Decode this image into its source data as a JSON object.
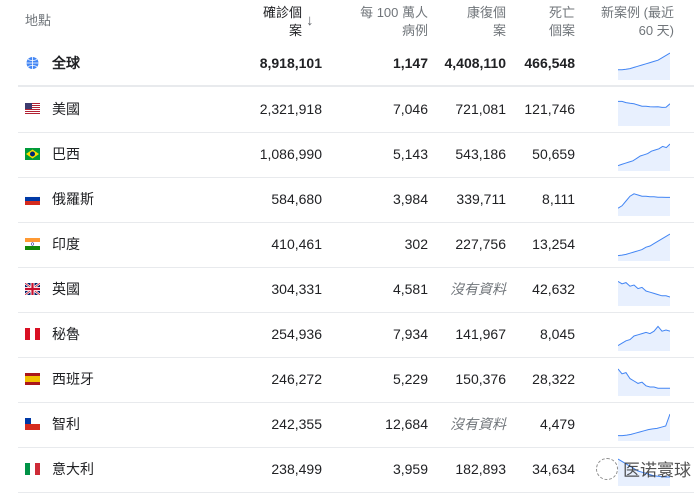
{
  "header": {
    "location": "地點",
    "confirmed": "確診個案",
    "per_million": "每 100 萬人病例",
    "recovered": "康復個案",
    "deaths": "死亡個案",
    "new_cases": "新案例 (最近 60 天)",
    "sort_icon": "arrow-down"
  },
  "accent": "#4285f4",
  "spark_fill": "#e8f0fe",
  "rows": [
    {
      "name": "全球",
      "flag": "globe",
      "confirmed": "8,918,101",
      "per_million": "1,147",
      "recovered": "4,408,110",
      "deaths": "466,548",
      "trend": [
        3,
        3,
        3.2,
        3.5,
        4,
        4.5,
        5,
        5.5,
        6,
        6.5,
        7,
        8,
        9,
        10
      ]
    },
    {
      "name": "美國",
      "flag": "us",
      "confirmed": "2,321,918",
      "per_million": "7,046",
      "recovered": "721,081",
      "deaths": "121,746",
      "trend": [
        9,
        9,
        8.5,
        8.2,
        8,
        7.5,
        7,
        7,
        6.8,
        6.7,
        6.8,
        6.5,
        6.6,
        8
      ]
    },
    {
      "name": "巴西",
      "flag": "br",
      "confirmed": "1,086,990",
      "per_million": "5,143",
      "recovered": "543,186",
      "deaths": "50,659",
      "trend": [
        1,
        1.5,
        2,
        2.5,
        3,
        4,
        5,
        5.5,
        6,
        7,
        7.5,
        8,
        9,
        8.5,
        10
      ]
    },
    {
      "name": "俄羅斯",
      "flag": "ru",
      "confirmed": "584,680",
      "per_million": "3,984",
      "recovered": "339,711",
      "deaths": "8,111",
      "trend": [
        2,
        3,
        5,
        7,
        8,
        7.5,
        7,
        7,
        6.8,
        6.8,
        6.6,
        6.6,
        6.5,
        6.5
      ]
    },
    {
      "name": "印度",
      "flag": "in",
      "confirmed": "410,461",
      "per_million": "302",
      "recovered": "227,756",
      "deaths": "13,254",
      "trend": [
        1,
        1.2,
        1.5,
        2,
        2.5,
        3,
        3.5,
        4.5,
        5,
        6,
        7,
        8,
        9,
        10
      ]
    },
    {
      "name": "英國",
      "flag": "gb",
      "confirmed": "304,331",
      "per_million": "4,581",
      "recovered": "沒有資料",
      "deaths": "42,632",
      "trend": [
        9,
        8,
        8.5,
        7,
        7.5,
        6,
        6.5,
        5,
        4.5,
        4,
        3.5,
        3,
        3,
        2.5
      ]
    },
    {
      "name": "秘魯",
      "flag": "pe",
      "confirmed": "254,936",
      "per_million": "7,934",
      "recovered": "141,967",
      "deaths": "8,045",
      "trend": [
        1,
        2,
        3,
        3.5,
        5,
        5.5,
        6,
        6.5,
        6,
        7,
        9,
        7,
        7.5,
        7
      ]
    },
    {
      "name": "西班牙",
      "flag": "es",
      "confirmed": "246,272",
      "per_million": "5,229",
      "recovered": "150,376",
      "deaths": "28,322",
      "trend": [
        10,
        8,
        8.5,
        6,
        5,
        4,
        4.5,
        3,
        2.5,
        2.5,
        2,
        2,
        2,
        2
      ]
    },
    {
      "name": "智利",
      "flag": "cl",
      "confirmed": "242,355",
      "per_million": "12,684",
      "recovered": "沒有資料",
      "deaths": "4,479",
      "trend": [
        1,
        1,
        1.2,
        1.5,
        2,
        2.5,
        3,
        3.5,
        3.8,
        4,
        4.5,
        5,
        10
      ]
    },
    {
      "name": "意大利",
      "flag": "it",
      "confirmed": "238,499",
      "per_million": "3,959",
      "recovered": "182,893",
      "deaths": "34,634",
      "trend": [
        10,
        9,
        8,
        7,
        6,
        5,
        4.5,
        4,
        3.5,
        3,
        2.8,
        2.6,
        2.5,
        2.5
      ]
    }
  ],
  "watermark": "医诺寰球"
}
